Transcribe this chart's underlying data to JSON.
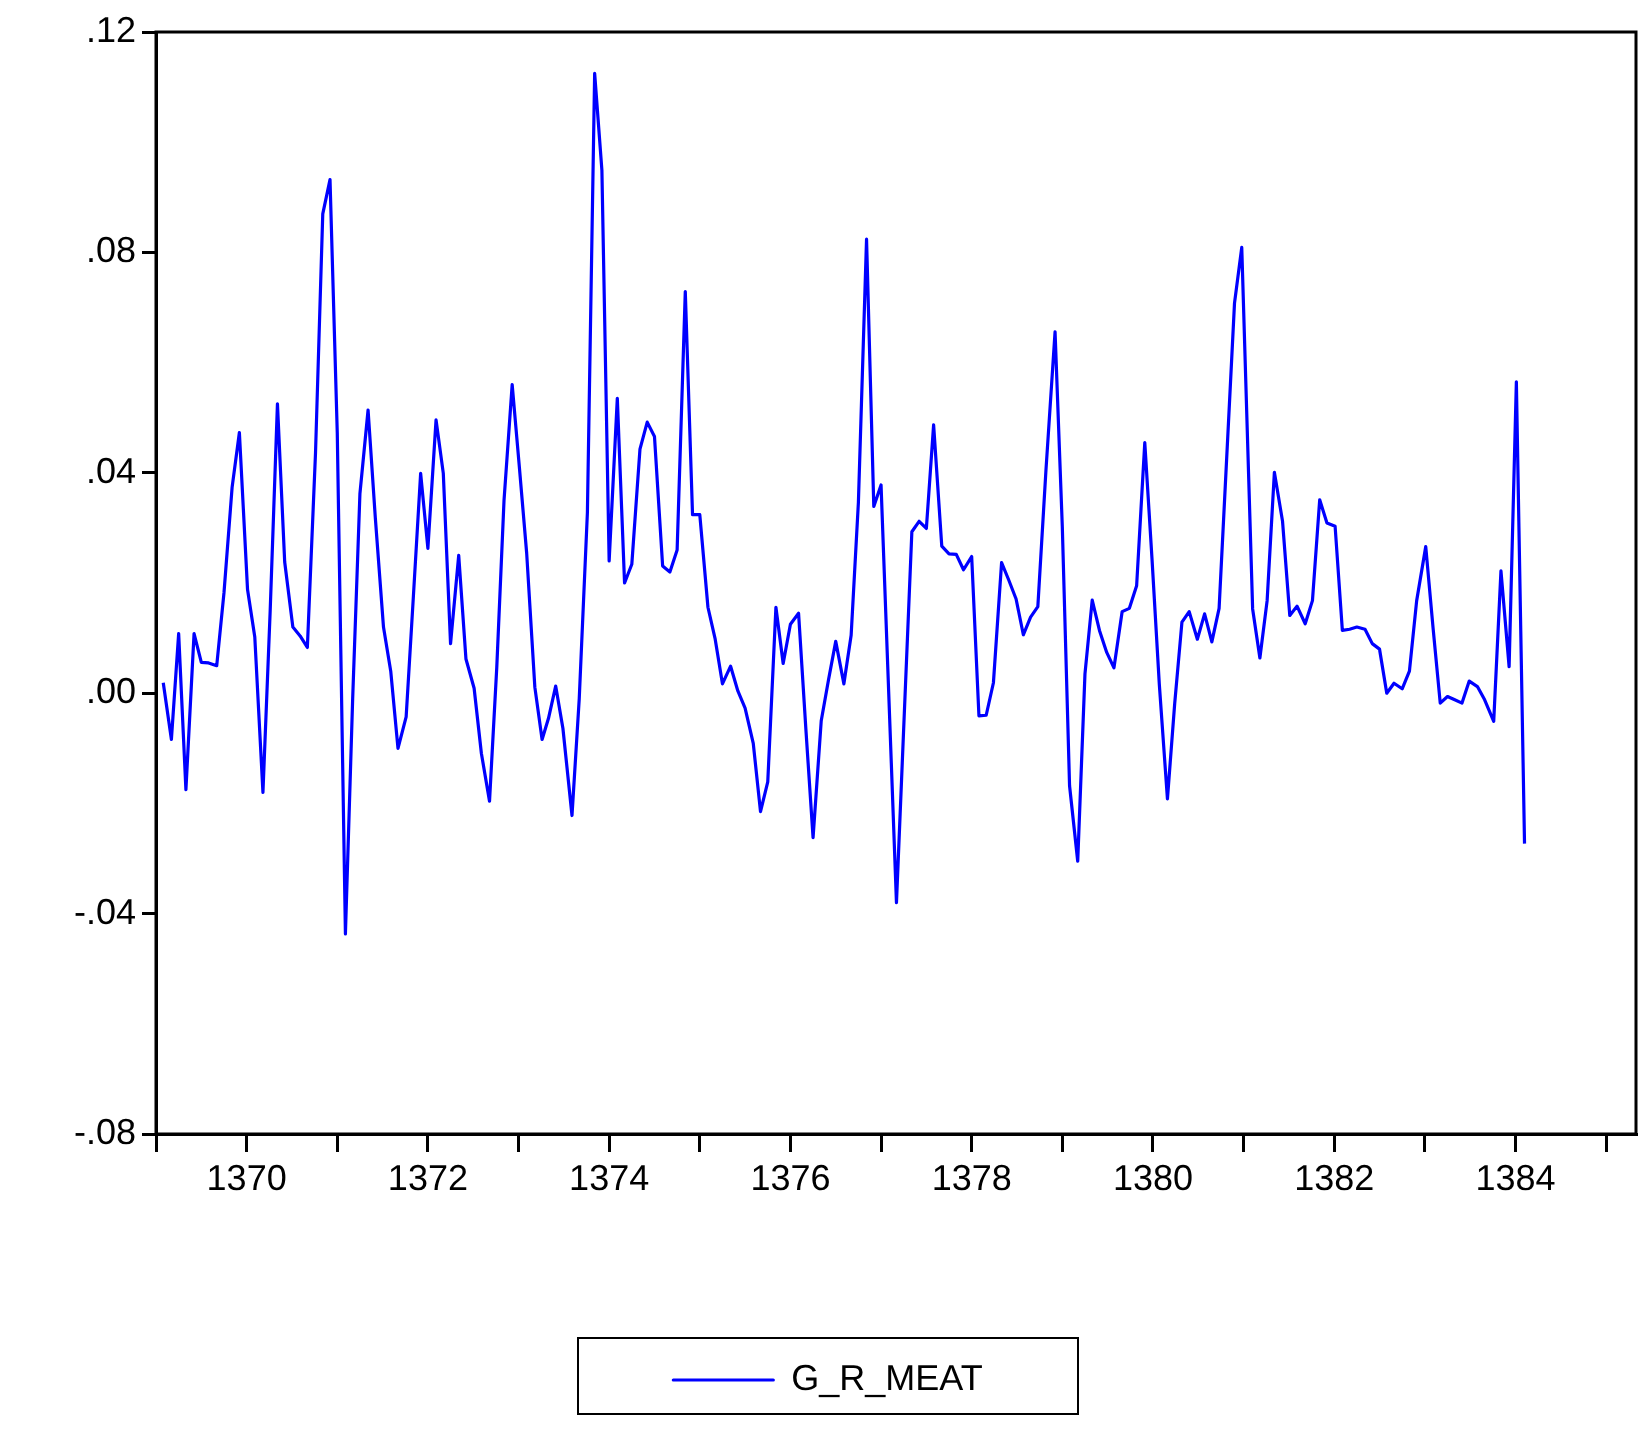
{
  "chart_data": {
    "type": "line",
    "legend": "bottom",
    "grid": false,
    "marker": "none",
    "line_style": "solid",
    "xlim": [
      1369,
      1385.33
    ],
    "xticks": [
      {
        "value": 1369,
        "label": null
      },
      1370,
      {
        "value": 1371,
        "label": null
      },
      1372,
      {
        "value": 1373,
        "label": null
      },
      1374,
      {
        "value": 1375,
        "label": null
      },
      1376,
      {
        "value": 1377,
        "label": null
      },
      1378,
      {
        "value": 1379,
        "label": null
      },
      1380,
      {
        "value": 1381,
        "label": null
      },
      1382,
      {
        "value": 1383,
        "label": null
      },
      1384,
      {
        "value": 1385,
        "label": null
      }
    ],
    "ylim": [
      -0.08,
      0.12
    ],
    "yticks": [
      {
        "value": -0.08,
        "label": "-.08"
      },
      {
        "value": -0.04,
        "label": "-.04"
      },
      {
        "value": 0,
        "label": ".00"
      },
      {
        "value": 0.04,
        "label": ".04"
      },
      {
        "value": 0.08,
        "label": ".08"
      },
      {
        "value": 0.12,
        "label": ".12"
      }
    ],
    "x": [
      1369.08,
      1369.17,
      1369.25,
      1369.33,
      1369.42,
      1369.5,
      1369.58,
      1369.67,
      1369.75,
      1369.84,
      1369.92,
      1370.01,
      1370.09,
      1370.18,
      1370.26,
      1370.34,
      1370.42,
      1370.51,
      1370.59,
      1370.67,
      1370.76,
      1370.84,
      1370.92,
      1371.0,
      1371.09,
      1371.17,
      1371.25,
      1371.34,
      1371.42,
      1371.51,
      1371.59,
      1371.67,
      1371.76,
      1371.84,
      1371.92,
      1372.0,
      1372.09,
      1372.17,
      1372.25,
      1372.34,
      1372.42,
      1372.51,
      1372.59,
      1372.68,
      1372.76,
      1372.84,
      1372.93,
      1373.01,
      1373.09,
      1373.18,
      1373.26,
      1373.33,
      1373.41,
      1373.49,
      1373.59,
      1373.67,
      1373.76,
      1373.84,
      1373.92,
      1374.0,
      1374.09,
      1374.17,
      1374.25,
      1374.34,
      1374.42,
      1374.5,
      1374.59,
      1374.67,
      1374.75,
      1374.84,
      1374.92,
      1375.0,
      1375.09,
      1375.17,
      1375.25,
      1375.34,
      1375.42,
      1375.5,
      1375.59,
      1375.67,
      1375.75,
      1375.84,
      1375.92,
      1376.0,
      1376.09,
      1376.17,
      1376.25,
      1376.34,
      1376.42,
      1376.5,
      1376.59,
      1376.67,
      1376.75,
      1376.84,
      1376.92,
      1377.0,
      1377.17,
      1377.34,
      1377.42,
      1377.5,
      1377.58,
      1377.67,
      1377.75,
      1377.83,
      1377.91,
      1378.0,
      1378.08,
      1378.16,
      1378.24,
      1378.33,
      1378.41,
      1378.49,
      1378.57,
      1378.65,
      1378.73,
      1378.82,
      1378.92,
      1379.0,
      1379.08,
      1379.17,
      1379.25,
      1379.33,
      1379.41,
      1379.49,
      1379.57,
      1379.66,
      1379.74,
      1379.82,
      1379.91,
      1379.99,
      1380.07,
      1380.16,
      1380.24,
      1380.32,
      1380.4,
      1380.49,
      1380.57,
      1380.65,
      1380.73,
      1380.9,
      1380.98,
      1381.1,
      1381.18,
      1381.26,
      1381.34,
      1381.43,
      1381.51,
      1381.59,
      1381.68,
      1381.76,
      1381.84,
      1381.92,
      1382.01,
      1382.09,
      1382.17,
      1382.25,
      1382.34,
      1382.42,
      1382.5,
      1382.58,
      1382.66,
      1382.75,
      1382.83,
      1382.91,
      1383.01,
      1383.09,
      1383.17,
      1383.25,
      1383.33,
      1383.41,
      1383.49,
      1383.58,
      1383.66,
      1383.76,
      1383.84,
      1383.93,
      1384.01,
      1384.1
    ],
    "series": [
      {
        "name": "G_R_MEAT",
        "color": "#0000ff",
        "values": [
          0.0019,
          -0.0084,
          0.0108,
          -0.0175,
          0.0108,
          0.0056,
          0.0055,
          0.005,
          0.0182,
          0.0374,
          0.0473,
          0.0188,
          0.0102,
          -0.018,
          0.015,
          0.0525,
          0.0238,
          0.012,
          0.0104,
          0.0083,
          0.0436,
          0.087,
          0.0932,
          0.0473,
          -0.0437,
          -0.001,
          0.0362,
          0.0514,
          0.0318,
          0.012,
          0.004,
          -0.01,
          -0.0043,
          0.0176,
          0.0399,
          0.0263,
          0.0496,
          0.0399,
          0.009,
          0.025,
          0.0062,
          0.0009,
          -0.0109,
          -0.0196,
          0.0047,
          0.035,
          0.056,
          0.0409,
          0.0254,
          0.0011,
          -0.0084,
          -0.0046,
          0.0013,
          -0.0064,
          -0.0222,
          -0.001,
          0.0328,
          0.1125,
          0.0949,
          0.024,
          0.0535,
          0.02,
          0.0234,
          0.0443,
          0.0492,
          0.0466,
          0.0231,
          0.022,
          0.026,
          0.0729,
          0.0324,
          0.0324,
          0.0156,
          0.0098,
          0.0017,
          0.0049,
          0.0004,
          -0.0027,
          -0.0091,
          -0.0215,
          -0.0161,
          0.0156,
          0.0054,
          0.0125,
          0.0145,
          -0.0064,
          -0.0262,
          -0.005,
          0.0024,
          0.0094,
          0.0017,
          0.0105,
          0.0346,
          0.0824,
          0.0339,
          0.0378,
          -0.038,
          0.0293,
          0.0312,
          0.0299,
          0.0487,
          0.0267,
          0.0253,
          0.0252,
          0.0224,
          0.0248,
          -0.0041,
          -0.004,
          0.0019,
          0.0237,
          0.0205,
          0.0171,
          0.0106,
          0.0138,
          0.0157,
          0.0406,
          0.0656,
          0.0302,
          -0.0168,
          -0.0305,
          0.0035,
          0.0169,
          0.0114,
          0.0074,
          0.0046,
          0.0148,
          0.0154,
          0.0195,
          0.0455,
          0.0243,
          0.0017,
          -0.0192,
          -0.0019,
          0.0129,
          0.0148,
          0.0098,
          0.0144,
          0.0093,
          0.0154,
          0.0708,
          0.0809,
          0.0153,
          0.0064,
          0.0168,
          0.0401,
          0.0312,
          0.0141,
          0.0158,
          0.0126,
          0.0168,
          0.0351,
          0.0309,
          0.0303,
          0.0114,
          0.0116,
          0.012,
          0.0116,
          0.009,
          0.008,
          0.0,
          0.0018,
          0.0008,
          0.004,
          0.0168,
          0.0266,
          0.012,
          -0.0018,
          -0.0006,
          -0.0012,
          -0.0018,
          0.0022,
          0.0012,
          -0.0012,
          -0.0051,
          0.0222,
          0.0048,
          0.0565,
          -0.0273
        ]
      }
    ]
  }
}
